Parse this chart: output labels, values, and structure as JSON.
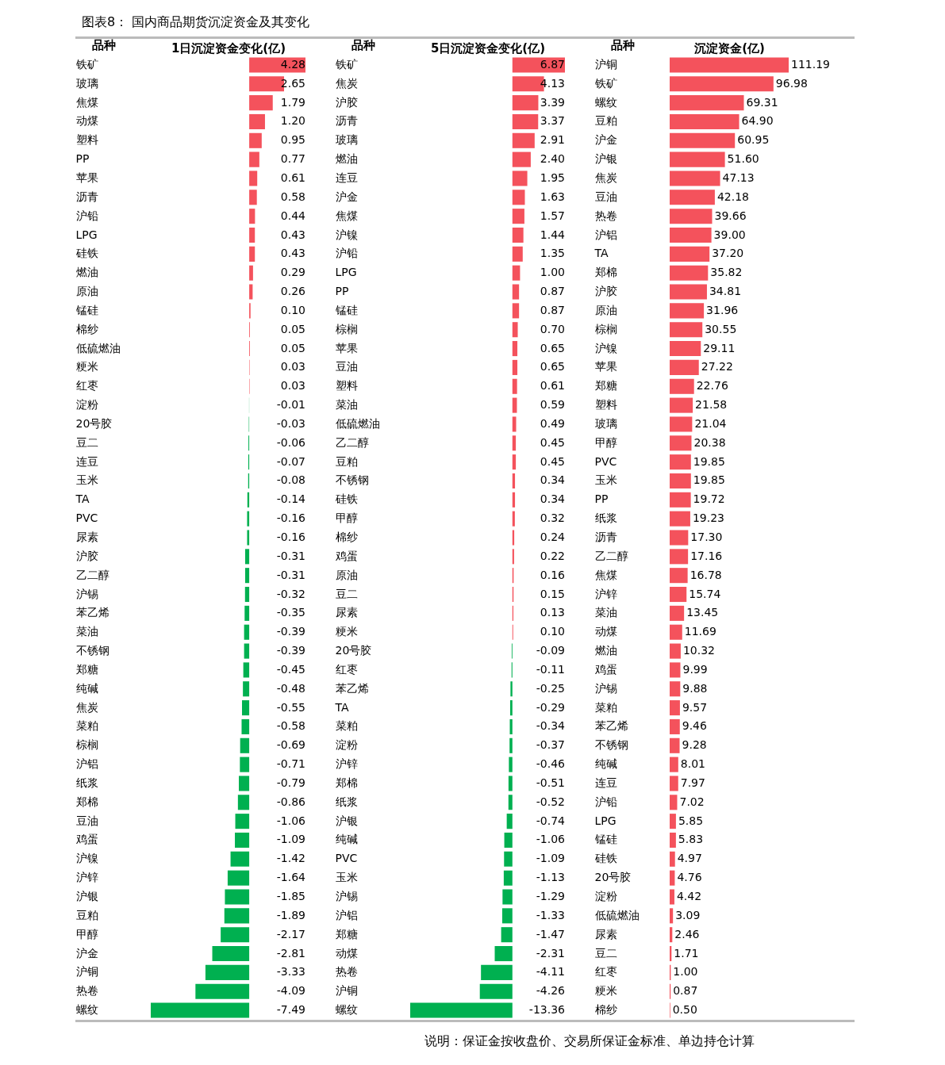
{
  "chart_data": [
    {
      "type": "bar",
      "orientation": "horizontal",
      "title": "图表8： 国内商品期货沉淀资金及其变化",
      "xlabel": "1日沉淀资金变化(亿)",
      "ylabel": "品种",
      "tick_labels": "y",
      "value_labels": [
        "4.28",
        "2.65",
        "1.79",
        "1.20",
        "0.95",
        "0.77",
        "0.61",
        "0.58",
        "0.44",
        "0.43",
        "0.43",
        "0.29",
        "0.26",
        "0.10",
        "0.05",
        "0.05",
        "0.03",
        "0.03",
        "-0.01",
        "-0.03",
        "-0.06",
        "-0.07",
        "-0.08",
        "-0.14",
        "-0.16",
        "-0.16",
        "-0.31",
        "-0.31",
        "-0.32",
        "-0.35",
        "-0.39",
        "-0.39",
        "-0.45",
        "-0.48",
        "-0.55",
        "-0.58",
        "-0.69",
        "-0.71",
        "-0.79",
        "-0.86",
        "-1.06",
        "-1.09",
        "-1.42",
        "-1.64",
        "-1.85",
        "-1.89",
        "-2.17",
        "-2.81",
        "-3.33",
        "-4.09",
        "-7.49"
      ],
      "categories": [
        "铁矿",
        "玻璃",
        "焦煤",
        "动煤",
        "塑料",
        "PP",
        "苹果",
        "沥青",
        "沪铅",
        "LPG",
        "硅铁",
        "燃油",
        "原油",
        "锰硅",
        "棉纱",
        "低硫燃油",
        "粳米",
        "红枣",
        "淀粉",
        "20号胶",
        "豆二",
        "连豆",
        "玉米",
        "TA",
        "PVC",
        "尿素",
        "沪胶",
        "乙二醇",
        "沪锡",
        "苯乙烯",
        "菜油",
        "不锈钢",
        "郑糖",
        "纯碱",
        "焦炭",
        "菜粕",
        "棕榈",
        "沪铝",
        "纸浆",
        "郑棉",
        "豆油",
        "鸡蛋",
        "沪镍",
        "沪锌",
        "沪银",
        "豆粕",
        "甲醇",
        "沪金",
        "沪铜",
        "热卷",
        "螺纹"
      ],
      "values": [
        4.28,
        2.65,
        1.79,
        1.2,
        0.95,
        0.77,
        0.61,
        0.58,
        0.44,
        0.43,
        0.43,
        0.29,
        0.26,
        0.1,
        0.05,
        0.05,
        0.03,
        0.03,
        -0.01,
        -0.03,
        -0.06,
        -0.07,
        -0.08,
        -0.14,
        -0.16,
        -0.16,
        -0.31,
        -0.31,
        -0.32,
        -0.35,
        -0.39,
        -0.39,
        -0.45,
        -0.48,
        -0.55,
        -0.58,
        -0.69,
        -0.71,
        -0.79,
        -0.86,
        -1.06,
        -1.09,
        -1.42,
        -1.64,
        -1.85,
        -1.89,
        -2.17,
        -2.81,
        -3.33,
        -4.09,
        -7.49
      ],
      "colors": [
        "#f4525c",
        "#f4525c",
        "#f4525c",
        "#f4525c",
        "#f4525c",
        "#f4525c",
        "#f4525c",
        "#f4525c",
        "#f4525c",
        "#f4525c",
        "#f4525c",
        "#f4525c",
        "#f4525c",
        "#f4525c",
        "#f4525c",
        "#f4525c",
        "#f4525c",
        "#f4525c",
        "#00b050",
        "#00b050",
        "#00b050",
        "#00b050",
        "#00b050",
        "#00b050",
        "#00b050",
        "#00b050",
        "#00b050",
        "#00b050",
        "#00b050",
        "#00b050",
        "#00b050",
        "#00b050",
        "#00b050",
        "#00b050",
        "#00b050",
        "#00b050",
        "#00b050",
        "#00b050",
        "#00b050",
        "#00b050",
        "#00b050",
        "#00b050",
        "#00b050",
        "#00b050",
        "#00b050",
        "#00b050",
        "#00b050",
        "#00b050",
        "#00b050",
        "#00b050",
        "#00b050"
      ]
    },
    {
      "type": "bar",
      "orientation": "horizontal",
      "xlabel": "5日沉淀资金变化(亿)",
      "ylabel": "品种",
      "tick_labels": "y",
      "value_labels": [
        "6.87",
        "4.13",
        "3.39",
        "3.37",
        "2.91",
        "2.40",
        "1.95",
        "1.63",
        "1.57",
        "1.44",
        "1.35",
        "1.00",
        "0.87",
        "0.87",
        "0.70",
        "0.65",
        "0.65",
        "0.61",
        "0.59",
        "0.49",
        "0.45",
        "0.45",
        "0.34",
        "0.34",
        "0.32",
        "0.24",
        "0.22",
        "0.16",
        "0.15",
        "0.13",
        "0.10",
        "-0.09",
        "-0.11",
        "-0.25",
        "-0.29",
        "-0.34",
        "-0.37",
        "-0.46",
        "-0.51",
        "-0.52",
        "-0.74",
        "-1.06",
        "-1.09",
        "-1.13",
        "-1.29",
        "-1.33",
        "-1.47",
        "-2.31",
        "-4.11",
        "-4.26",
        "-13.36"
      ],
      "categories": [
        "铁矿",
        "焦炭",
        "沪胶",
        "沥青",
        "玻璃",
        "燃油",
        "连豆",
        "沪金",
        "焦煤",
        "沪镍",
        "沪铅",
        "LPG",
        "PP",
        "锰硅",
        "棕榈",
        "苹果",
        "豆油",
        "塑料",
        "菜油",
        "低硫燃油",
        "乙二醇",
        "豆粕",
        "不锈钢",
        "硅铁",
        "甲醇",
        "棉纱",
        "鸡蛋",
        "原油",
        "豆二",
        "尿素",
        "粳米",
        "20号胶",
        "红枣",
        "苯乙烯",
        "TA",
        "菜粕",
        "淀粉",
        "沪锌",
        "郑棉",
        "纸浆",
        "沪银",
        "纯碱",
        "PVC",
        "玉米",
        "沪锡",
        "沪铝",
        "郑糖",
        "动煤",
        "热卷",
        "沪铜",
        "螺纹"
      ],
      "values": [
        6.87,
        4.13,
        3.39,
        3.37,
        2.91,
        2.4,
        1.95,
        1.63,
        1.57,
        1.44,
        1.35,
        1.0,
        0.87,
        0.87,
        0.7,
        0.65,
        0.65,
        0.61,
        0.59,
        0.49,
        0.45,
        0.45,
        0.34,
        0.34,
        0.32,
        0.24,
        0.22,
        0.16,
        0.15,
        0.13,
        0.1,
        -0.09,
        -0.11,
        -0.25,
        -0.29,
        -0.34,
        -0.37,
        -0.46,
        -0.51,
        -0.52,
        -0.74,
        -1.06,
        -1.09,
        -1.13,
        -1.29,
        -1.33,
        -1.47,
        -2.31,
        -4.11,
        -4.26,
        -13.36
      ],
      "colors": [
        "#f4525c",
        "#f4525c",
        "#f4525c",
        "#f4525c",
        "#f4525c",
        "#f4525c",
        "#f4525c",
        "#f4525c",
        "#f4525c",
        "#f4525c",
        "#f4525c",
        "#f4525c",
        "#f4525c",
        "#f4525c",
        "#f4525c",
        "#f4525c",
        "#f4525c",
        "#f4525c",
        "#f4525c",
        "#f4525c",
        "#f4525c",
        "#f4525c",
        "#f4525c",
        "#f4525c",
        "#f4525c",
        "#f4525c",
        "#f4525c",
        "#f4525c",
        "#f4525c",
        "#f4525c",
        "#f4525c",
        "#00b050",
        "#00b050",
        "#00b050",
        "#00b050",
        "#00b050",
        "#00b050",
        "#00b050",
        "#00b050",
        "#00b050",
        "#00b050",
        "#00b050",
        "#00b050",
        "#00b050",
        "#00b050",
        "#00b050",
        "#00b050",
        "#00b050",
        "#00b050",
        "#00b050",
        "#00b050"
      ]
    },
    {
      "type": "bar",
      "orientation": "horizontal",
      "xlabel": "沉淀资金(亿)",
      "ylabel": "品种",
      "tick_labels": "y",
      "value_labels": [
        "111.19",
        "96.98",
        "69.31",
        "64.90",
        "60.95",
        "51.60",
        "47.13",
        "42.18",
        "39.66",
        "39.00",
        "37.20",
        "35.82",
        "34.81",
        "31.96",
        "30.55",
        "29.11",
        "27.22",
        "22.76",
        "21.58",
        "21.04",
        "20.38",
        "19.85",
        "19.85",
        "19.72",
        "19.23",
        "17.30",
        "17.16",
        "16.78",
        "15.74",
        "13.45",
        "11.69",
        "10.32",
        "9.99",
        "9.88",
        "9.57",
        "9.46",
        "9.28",
        "8.01",
        "7.97",
        "7.02",
        "5.85",
        "5.83",
        "4.97",
        "4.76",
        "4.42",
        "3.09",
        "2.46",
        "1.71",
        "1.00",
        "0.87",
        "0.50"
      ],
      "annotations": [
        "说明：保证金按收盘价、交易所保证金标准、单边持仓计算"
      ],
      "categories": [
        "沪铜",
        "铁矿",
        "螺纹",
        "豆粕",
        "沪金",
        "沪银",
        "焦炭",
        "豆油",
        "热卷",
        "沪铝",
        "TA",
        "郑棉",
        "沪胶",
        "原油",
        "棕榈",
        "沪镍",
        "苹果",
        "郑糖",
        "塑料",
        "玻璃",
        "甲醇",
        "PVC",
        "玉米",
        "PP",
        "纸浆",
        "沥青",
        "乙二醇",
        "焦煤",
        "沪锌",
        "菜油",
        "动煤",
        "燃油",
        "鸡蛋",
        "沪锡",
        "菜粕",
        "苯乙烯",
        "不锈钢",
        "纯碱",
        "连豆",
        "沪铅",
        "LPG",
        "锰硅",
        "硅铁",
        "20号胶",
        "淀粉",
        "低硫燃油",
        "尿素",
        "豆二",
        "红枣",
        "粳米",
        "棉纱"
      ],
      "values": [
        111.19,
        96.98,
        69.31,
        64.9,
        60.95,
        51.6,
        47.13,
        42.18,
        39.66,
        39.0,
        37.2,
        35.82,
        34.81,
        31.96,
        30.55,
        29.11,
        27.22,
        22.76,
        21.58,
        21.04,
        20.38,
        19.85,
        19.85,
        19.72,
        19.23,
        17.3,
        17.16,
        16.78,
        15.74,
        13.45,
        11.69,
        10.32,
        9.99,
        9.88,
        9.57,
        9.46,
        9.28,
        8.01,
        7.97,
        7.02,
        5.85,
        5.83,
        4.97,
        4.76,
        4.42,
        3.09,
        2.46,
        1.71,
        1.0,
        0.87,
        0.5
      ],
      "colors": [
        "#f4525c",
        "#f4525c",
        "#f4525c",
        "#f4525c",
        "#f4525c",
        "#f4525c",
        "#f4525c",
        "#f4525c",
        "#f4525c",
        "#f4525c",
        "#f4525c",
        "#f4525c",
        "#f4525c",
        "#f4525c",
        "#f4525c",
        "#f4525c",
        "#f4525c",
        "#f4525c",
        "#f4525c",
        "#f4525c",
        "#f4525c",
        "#f4525c",
        "#f4525c",
        "#f4525c",
        "#f4525c",
        "#f4525c",
        "#f4525c",
        "#f4525c",
        "#f4525c",
        "#f4525c",
        "#f4525c",
        "#f4525c",
        "#f4525c",
        "#f4525c",
        "#f4525c",
        "#f4525c",
        "#f4525c",
        "#f4525c",
        "#f4525c",
        "#f4525c",
        "#f4525c",
        "#f4525c",
        "#f4525c",
        "#f4525c",
        "#f4525c",
        "#f4525c",
        "#f4525c",
        "#f4525c",
        "#f4525c",
        "#f4525c",
        "#f4525c"
      ]
    }
  ]
}
